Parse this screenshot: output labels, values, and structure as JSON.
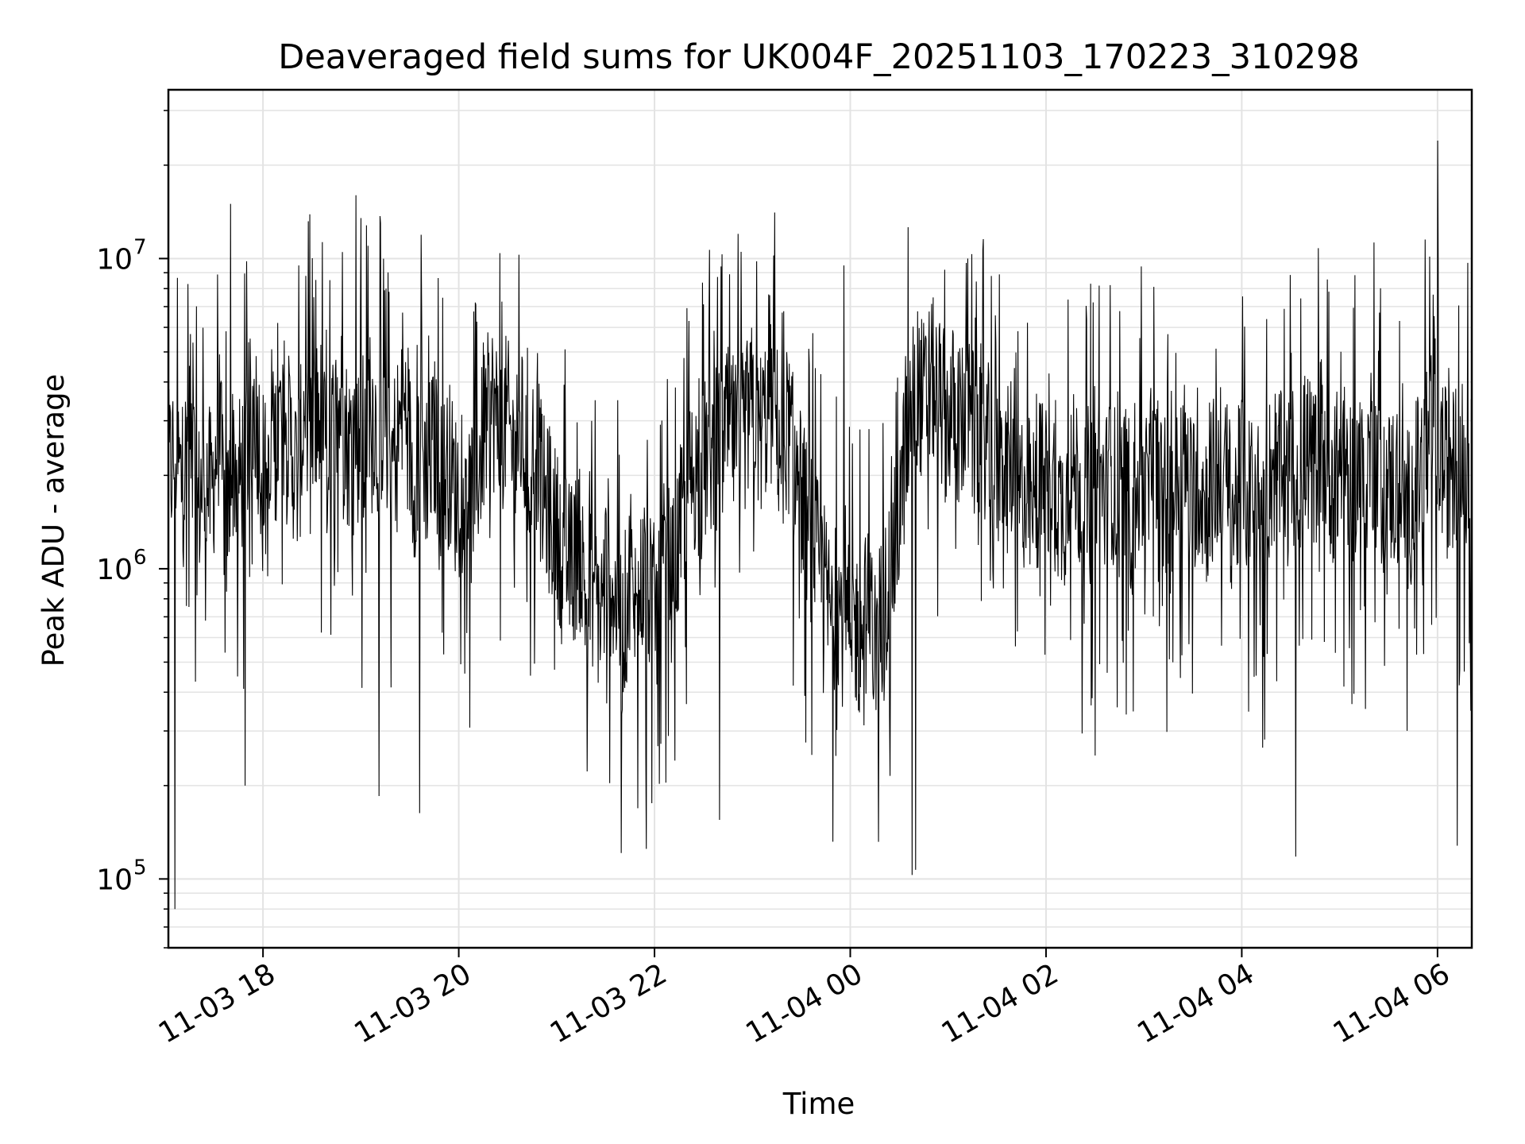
{
  "chart_data": {
    "type": "line",
    "title": "Deaveraged field sums for UK004F_20251103_170223_310298",
    "xlabel": "Time",
    "ylabel": "Peak ADU - average",
    "y_scale": "log",
    "ylim": [
      60000,
      35000000
    ],
    "xlim": [
      "2025-11-03 17:02",
      "2025-11-04 06:21"
    ],
    "x_ticks": [
      "11-03 18",
      "11-03 20",
      "11-03 22",
      "11-04 00",
      "11-04 02",
      "11-04 04",
      "11-04 06"
    ],
    "y_ticks": [
      {
        "base": "10",
        "exp": "5",
        "value": 100000
      },
      {
        "base": "10",
        "exp": "6",
        "value": 1000000
      },
      {
        "base": "10",
        "exp": "7",
        "value": 10000000
      }
    ],
    "grid": true,
    "line_color": "#000000",
    "series": [
      {
        "x_start": "2025-11-03 17:02",
        "x_end": "2025-11-04 06:21",
        "values": [
          2000000,
          2400000,
          1800000,
          3200000,
          1500000,
          2100000,
          1700000,
          2900000,
          1300000,
          2300000,
          1900000,
          2800000,
          3400000,
          2200000,
          1600000,
          2700000,
          3100000,
          2500000,
          1900000,
          3600000,
          2700000,
          3300000,
          2200000,
          2900000,
          3500000,
          2400000,
          2900000,
          2000000,
          3800000,
          2600000,
          3200000,
          2200000,
          2800000,
          3300000,
          1900000,
          2500000,
          2100000,
          2600000,
          1900000,
          2200000,
          1700000,
          2400000,
          1600000,
          2100000,
          2900000,
          3400000,
          2700000,
          3100000,
          2300000,
          2800000,
          2000000,
          2600000,
          1700000,
          1500000,
          1300000,
          1100000,
          1000000,
          1200000,
          800000,
          900000,
          700000,
          1100000,
          800000,
          600000,
          900000,
          700000,
          1000000,
          800000,
          700000,
          1100000,
          900000,
          1300000,
          1700000,
          2100000,
          1900000,
          2500000,
          2200000,
          2600000,
          2900000,
          2400000,
          2800000,
          3300000,
          2700000,
          3100000,
          3500000,
          2400000,
          2900000,
          2100000,
          1700000,
          1300000,
          1100000,
          900000,
          700000,
          800000,
          600000,
          700000,
          600000,
          750000,
          550000,
          700000,
          900000,
          1200000,
          2000000,
          3200000,
          3800000,
          3400000,
          4100000,
          3600000,
          3000000,
          3300000,
          2800000,
          3200000,
          2600000,
          2900000,
          2400000,
          2100000,
          1800000,
          2300000,
          1600000,
          1900000,
          1500000,
          2000000,
          1700000,
          1900000,
          1500000,
          1800000,
          2100000,
          1600000,
          1900000,
          2200000,
          1700000,
          2000000,
          1600000,
          1900000,
          1400000,
          2000000,
          1700000,
          2100000,
          1800000,
          1500000,
          1900000,
          2300000,
          1700000,
          2000000,
          1600000,
          1900000,
          2200000,
          1800000,
          1500000,
          2000000,
          1700000,
          1900000,
          1400000,
          2000000,
          2300000,
          1700000,
          2100000,
          1800000,
          2500000,
          2000000,
          2700000,
          2100000,
          1900000,
          2400000,
          1700000,
          2200000,
          1800000,
          2600000,
          2000000,
          1700000,
          1900000,
          1600000,
          1500000,
          1800000,
          2100000,
          2500000,
          2800000,
          2200000,
          1900000,
          2400000,
          2100000,
          1900000
        ],
        "spikes_high": [
          {
            "t": "2025-11-03 17:40",
            "v": 15000000
          },
          {
            "t": "2025-11-03 17:50",
            "v": 9800000
          },
          {
            "t": "2025-11-03 18:22",
            "v": 9500000
          },
          {
            "t": "2025-11-03 18:57",
            "v": 16000000
          },
          {
            "t": "2025-11-03 19:00",
            "v": 13500000
          },
          {
            "t": "2025-11-03 22:46",
            "v": 8900000
          },
          {
            "t": "2025-11-03 23:56",
            "v": 9500000
          },
          {
            "t": "2025-11-04 01:12",
            "v": 10000000
          },
          {
            "t": "2025-11-04 03:06",
            "v": 8100000
          },
          {
            "t": "2025-11-04 04:47",
            "v": 10800000
          },
          {
            "t": "2025-11-04 06:00",
            "v": 24000000
          }
        ],
        "spikes_low": [
          {
            "t": "2025-11-03 17:06",
            "v": 80000
          },
          {
            "t": "2025-11-03 17:49",
            "v": 200000
          },
          {
            "t": "2025-11-03 19:11",
            "v": 185000
          },
          {
            "t": "2025-11-03 19:36",
            "v": 163000
          },
          {
            "t": "2025-11-03 21:55",
            "v": 125000
          },
          {
            "t": "2025-11-03 22:40",
            "v": 155000
          },
          {
            "t": "2025-11-04 00:38",
            "v": 103000
          },
          {
            "t": "2025-11-04 00:40",
            "v": 107000
          },
          {
            "t": "2025-11-04 02:30",
            "v": 250000
          },
          {
            "t": "2025-11-04 04:33",
            "v": 118000
          },
          {
            "t": "2025-11-04 06:12",
            "v": 128000
          }
        ]
      }
    ]
  }
}
